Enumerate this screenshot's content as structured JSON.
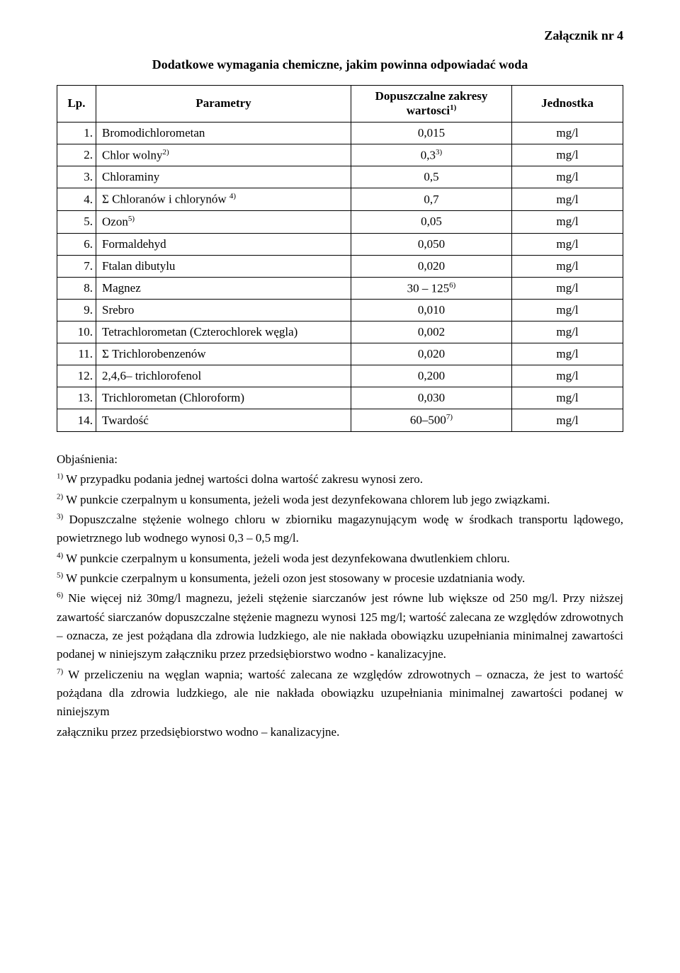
{
  "attachment": "Załącznik nr 4",
  "title": "Dodatkowe wymagania chemiczne, jakim powinna odpowiadać woda",
  "table": {
    "headers": {
      "lp": "Lp.",
      "param": "Parametry",
      "range_prefix": "Dopuszczalne zakresy",
      "range_word": "wartosci",
      "range_sup": "1)",
      "unit": "Jednostka"
    },
    "rows": [
      {
        "lp": "1.",
        "param_pre": "Bromodichlorometan",
        "sup": "",
        "param_post": "",
        "val": "0,015",
        "unit": "mg/l"
      },
      {
        "lp": "2.",
        "param_pre": "Chlor wolny",
        "sup": "2)",
        "param_post": "",
        "val": "0,3",
        "val_sup": "3)",
        "unit": "mg/l"
      },
      {
        "lp": "3.",
        "param_pre": "Chloraminy",
        "sup": "",
        "param_post": "",
        "val": "0,5",
        "unit": "mg/l"
      },
      {
        "lp": "4.",
        "param_pre": "Σ Chloranów i chlorynów ",
        "sup": "4)",
        "param_post": "",
        "val": "0,7",
        "unit": "mg/l"
      },
      {
        "lp": "5.",
        "param_pre": "Ozon",
        "sup": "5)",
        "param_post": "",
        "val": "0,05",
        "unit": "mg/l"
      },
      {
        "lp": "6.",
        "param_pre": "Formaldehyd",
        "sup": "",
        "param_post": "",
        "val": "0,050",
        "unit": "mg/l"
      },
      {
        "lp": "7.",
        "param_pre": "Ftalan dibutylu",
        "sup": "",
        "param_post": "",
        "val": "0,020",
        "unit": "mg/l"
      },
      {
        "lp": "8.",
        "param_pre": "Magnez",
        "sup": "",
        "param_post": "",
        "val": "30 – 125",
        "val_sup": "6)",
        "unit": "mg/l"
      },
      {
        "lp": "9.",
        "param_pre": "Srebro",
        "sup": "",
        "param_post": "",
        "val": "0,010",
        "unit": "mg/l"
      },
      {
        "lp": "10.",
        "param_pre": "Tetrachlorometan (Czterochlorek węgla)",
        "sup": "",
        "param_post": "",
        "val": "0,002",
        "unit": "mg/l"
      },
      {
        "lp": "11.",
        "param_pre": "Σ Trichlorobenzenów",
        "sup": "",
        "param_post": "",
        "val": "0,020",
        "unit": "mg/l"
      },
      {
        "lp": "12.",
        "param_pre": "2,4,6– trichlorofenol",
        "sup": "",
        "param_post": "",
        "val": "0,200",
        "unit": "mg/l"
      },
      {
        "lp": "13.",
        "param_pre": "Trichlorometan (Chloroform)",
        "sup": "",
        "param_post": "",
        "val": "0,030",
        "unit": "mg/l"
      },
      {
        "lp": "14.",
        "param_pre": "Twardość",
        "sup": "",
        "param_post": "",
        "val": "60–500",
        "val_sup": "7)",
        "unit": "mg/l"
      }
    ]
  },
  "notes": {
    "heading": "Objaśnienia:",
    "items": [
      {
        "sup": "1)",
        "text": " W przypadku podania jednej wartości dolna wartość zakresu wynosi zero."
      },
      {
        "sup": "2)",
        "text": " W punkcie czerpalnym u konsumenta, jeżeli woda jest dezynfekowana chlorem lub jego związkami."
      },
      {
        "sup": "3)",
        "text": " Dopuszczalne stężenie wolnego chloru w zbiorniku magazynującym wodę w środkach transportu lądowego, powietrznego lub wodnego wynosi  0,3 – 0,5 mg/l."
      },
      {
        "sup": "4)",
        "text": " W punkcie czerpalnym u konsumenta, jeżeli woda jest dezynfekowana dwutlenkiem chloru."
      },
      {
        "sup": "5)",
        "text": " W punkcie czerpalnym u konsumenta, jeżeli ozon jest stosowany w procesie uzdatniania wody."
      },
      {
        "sup": "6)",
        "text": " Nie więcej niż 30mg/l magnezu, jeżeli stężenie siarczanów jest równe lub większe od 250 mg/l. Przy niższej zawartość siarczanów dopuszczalne stężenie magnezu wynosi 125 mg/l; wartość zalecana ze względów zdrowotnych – oznacza, ze jest pożądana dla zdrowia ludzkiego, ale nie nakłada obowiązku uzupełniania minimalnej zawartości podanej w niniejszym załączniku przez przedsiębiorstwo wodno - kanalizacyjne."
      },
      {
        "sup": "7)",
        "text": " W przeliczeniu na węglan wapnia; wartość zalecana ze względów zdrowotnych – oznacza, że jest to wartość pożądana dla zdrowia ludzkiego, ale nie nakłada obowiązku uzupełniania minimalnej zawartości podanej w niniejszym"
      }
    ],
    "tail": "załączniku przez przedsiębiorstwo wodno – kanalizacyjne."
  }
}
